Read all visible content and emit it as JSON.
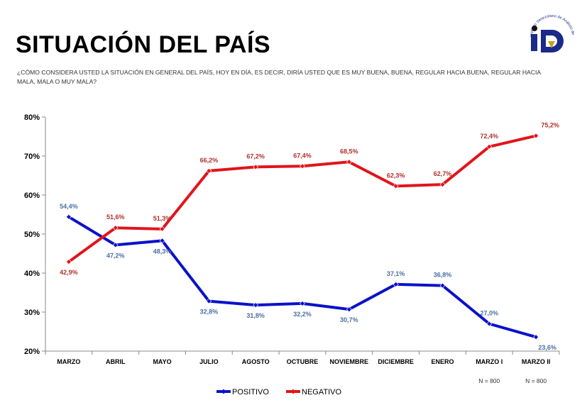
{
  "header": {
    "title": "SITUACIÓN DEL PAÍS",
    "question": "¿CÓMO CONSIDERA USTED LA SITUACIÓN EN GENERAL DEL PAÍS, HOY EN DÍA, ES DECIR, DIRÍA USTED QUE ES MUY BUENA, BUENA, REGULAR HACIA BUENA, REGULAR HACIA MALA, MALA O MUY MALA?",
    "logo_text": "Instituto Venezolano de Análisis de Datos"
  },
  "colors": {
    "positivo": "#0a12c8",
    "negativo": "#e0151b",
    "positivo_label": "#4a6fa5",
    "negativo_label": "#b0302a"
  },
  "chart_data": {
    "type": "line",
    "title": "",
    "xlabel": "",
    "ylabel": "",
    "ylim": [
      20,
      80
    ],
    "yticks": [
      "20%",
      "30%",
      "40%",
      "50%",
      "60%",
      "70%",
      "80%"
    ],
    "categories": [
      "MARZO",
      "ABRIL",
      "MAYO",
      "JULIO",
      "AGOSTO",
      "OCTUBRE",
      "NOVIEMBRE",
      "DICIEMBRE",
      "ENERO",
      "MARZO I",
      "MARZO II"
    ],
    "series": [
      {
        "name": "POSITIVO",
        "values": [
          54.4,
          47.2,
          48.3,
          32.8,
          31.8,
          32.2,
          30.7,
          37.1,
          36.8,
          27.0,
          23.6
        ],
        "labels": [
          "54,4%",
          "47,2%",
          "48,3%",
          "32,8%",
          "31,8%",
          "32,2%",
          "30,7%",
          "37,1%",
          "36,8%",
          "27,0%",
          "23,6%"
        ]
      },
      {
        "name": "NEGATIVO",
        "values": [
          42.9,
          51.6,
          51.3,
          66.2,
          67.2,
          67.4,
          68.5,
          62.3,
          62.7,
          72.4,
          75.2
        ],
        "labels": [
          "42,9%",
          "51,6%",
          "51,3%",
          "66,2%",
          "67,2%",
          "67,4%",
          "68,5%",
          "62,3%",
          "62,7%",
          "72,4%",
          "75,2%"
        ]
      }
    ],
    "notes": [
      {
        "category": "MARZO I",
        "text": "N = 800"
      },
      {
        "category": "MARZO II",
        "text": "N = 800"
      }
    ],
    "legend": "bottom-center",
    "grid": false
  }
}
